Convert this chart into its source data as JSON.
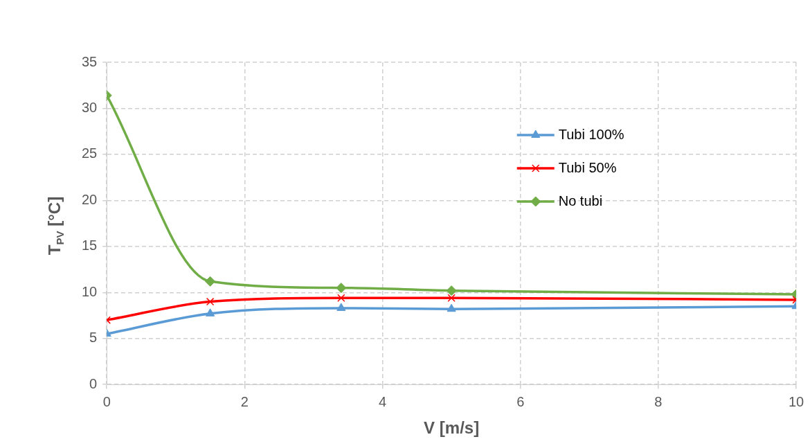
{
  "chart_data": {
    "type": "line",
    "xlabel": "V [m/s]",
    "ylabel": "T$_{PV}$ [°C]",
    "x": [
      0,
      1.5,
      3.4,
      5,
      10
    ],
    "series": [
      {
        "name": "Tubi 100%",
        "color": "#5b9bd5",
        "marker": "triangle",
        "values": [
          5.5,
          7.7,
          8.3,
          8.2,
          8.5
        ]
      },
      {
        "name": "Tubi 50%",
        "color": "#ff0000",
        "marker": "cross",
        "values": [
          7.0,
          9.0,
          9.4,
          9.4,
          9.2
        ]
      },
      {
        "name": "No tubi",
        "color": "#70ad47",
        "marker": "diamond",
        "values": [
          31.4,
          11.2,
          10.5,
          10.2,
          9.8
        ]
      }
    ],
    "xlim": [
      0,
      10
    ],
    "xticks": [
      0,
      2,
      4,
      6,
      8,
      10
    ],
    "ylim": [
      0,
      35
    ],
    "yticks": [
      0,
      5,
      10,
      15,
      20,
      25,
      30,
      35
    ],
    "grid": true,
    "legend": "top right",
    "line_style": "solid"
  }
}
